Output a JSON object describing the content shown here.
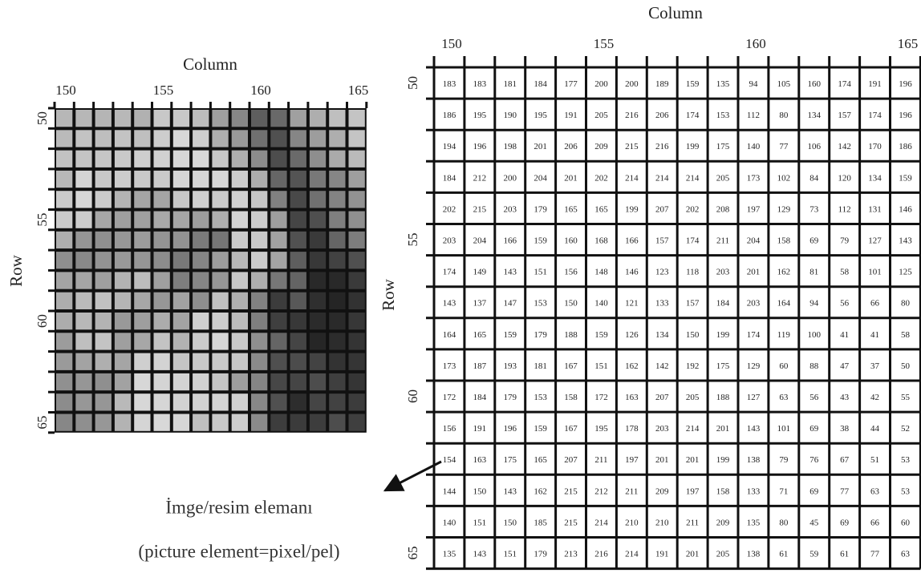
{
  "left": {
    "column_label": "Column",
    "row_label": "Row",
    "column_ticks": [
      150,
      155,
      160,
      165
    ],
    "row_ticks": [
      50,
      55,
      60,
      65
    ]
  },
  "right": {
    "column_label": "Column",
    "row_label": "Row",
    "column_ticks": [
      150,
      155,
      160,
      165
    ],
    "row_ticks": [
      50,
      55,
      60,
      65
    ]
  },
  "table": {
    "rows": [
      [
        183,
        183,
        181,
        184,
        177,
        200,
        200,
        189,
        159,
        135,
        94,
        105,
        160,
        174,
        191,
        196
      ],
      [
        186,
        195,
        190,
        195,
        191,
        205,
        216,
        206,
        174,
        153,
        112,
        80,
        134,
        157,
        174,
        196
      ],
      [
        194,
        196,
        198,
        201,
        206,
        209,
        215,
        216,
        199,
        175,
        140,
        77,
        106,
        142,
        170,
        186
      ],
      [
        184,
        212,
        200,
        204,
        201,
        202,
        214,
        214,
        214,
        205,
        173,
        102,
        84,
        120,
        134,
        159
      ],
      [
        202,
        215,
        203,
        179,
        165,
        165,
        199,
        207,
        202,
        208,
        197,
        129,
        73,
        112,
        131,
        146
      ],
      [
        203,
        204,
        166,
        159,
        160,
        168,
        166,
        157,
        174,
        211,
        204,
        158,
        69,
        79,
        127,
        143
      ],
      [
        174,
        149,
        143,
        151,
        156,
        148,
        146,
        123,
        118,
        203,
        201,
        162,
        81,
        58,
        101,
        125
      ],
      [
        143,
        137,
        147,
        153,
        150,
        140,
        121,
        133,
        157,
        184,
        203,
        164,
        94,
        56,
        66,
        80
      ],
      [
        164,
        165,
        159,
        179,
        188,
        159,
        126,
        134,
        150,
        199,
        174,
        119,
        100,
        41,
        41,
        58
      ],
      [
        173,
        187,
        193,
        181,
        167,
        151,
        162,
        142,
        192,
        175,
        129,
        60,
        88,
        47,
        37,
        50
      ],
      [
        172,
        184,
        179,
        153,
        158,
        172,
        163,
        207,
        205,
        188,
        127,
        63,
        56,
        43,
        42,
        55
      ],
      [
        156,
        191,
        196,
        159,
        167,
        195,
        178,
        203,
        214,
        201,
        143,
        101,
        69,
        38,
        44,
        52
      ],
      [
        154,
        163,
        175,
        165,
        207,
        211,
        197,
        201,
        201,
        199,
        138,
        79,
        76,
        67,
        51,
        53
      ],
      [
        144,
        150,
        143,
        162,
        215,
        212,
        211,
        209,
        197,
        158,
        133,
        71,
        69,
        77,
        63,
        53
      ],
      [
        140,
        151,
        150,
        185,
        215,
        214,
        210,
        210,
        211,
        209,
        135,
        80,
        45,
        69,
        66,
        60
      ],
      [
        135,
        143,
        151,
        179,
        213,
        216,
        214,
        191,
        201,
        205,
        138,
        61,
        59,
        61,
        77,
        63
      ]
    ]
  },
  "caption": {
    "line1": "İmge/resim elemanı",
    "line2": "(picture element=pixel/pel)"
  }
}
